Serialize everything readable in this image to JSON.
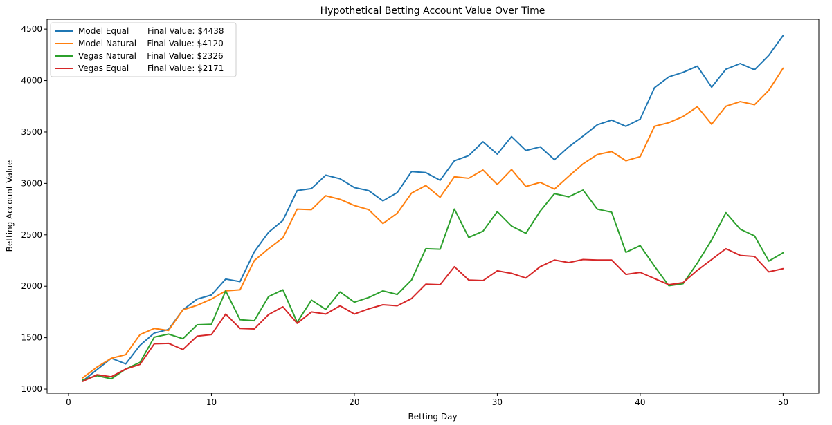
{
  "chart_data": {
    "type": "line",
    "title": "Hypothetical Betting Account Value Over Time",
    "xlabel": "Betting Day",
    "ylabel": "Betting Account Value",
    "xlim": [
      -1.5,
      52.5
    ],
    "ylim": [
      960,
      4595
    ],
    "xticks": [
      0,
      10,
      20,
      30,
      40,
      50
    ],
    "yticks": [
      1000,
      1500,
      2000,
      2500,
      3000,
      3500,
      4000,
      4500
    ],
    "grid": false,
    "legend_position": "top-left",
    "x": [
      1,
      2,
      3,
      4,
      5,
      6,
      7,
      8,
      9,
      10,
      11,
      12,
      13,
      14,
      15,
      16,
      17,
      18,
      19,
      20,
      21,
      22,
      23,
      24,
      25,
      26,
      27,
      28,
      29,
      30,
      31,
      32,
      33,
      34,
      35,
      36,
      37,
      38,
      39,
      40,
      41,
      42,
      43,
      44,
      45,
      46,
      47,
      48,
      49,
      50
    ],
    "series": [
      {
        "name": "Model Equal",
        "legend_label": "Model Equal       Final Value: $4438",
        "color": "#1f77b4",
        "values": [
          1080,
          1190,
          1300,
          1245,
          1425,
          1545,
          1580,
          1770,
          1875,
          1915,
          2070,
          2045,
          2335,
          2525,
          2640,
          2930,
          2950,
          3080,
          3045,
          2960,
          2930,
          2830,
          2910,
          3115,
          3105,
          3030,
          3220,
          3270,
          3405,
          3285,
          3455,
          3320,
          3355,
          3230,
          3355,
          3460,
          3570,
          3615,
          3555,
          3625,
          3930,
          4035,
          4080,
          4140,
          3935,
          4110,
          4165,
          4105,
          4245,
          4438
        ]
      },
      {
        "name": "Model Natural",
        "legend_label": "Model Natural    Final Value: $4120",
        "color": "#ff7f0e",
        "values": [
          1110,
          1215,
          1300,
          1335,
          1530,
          1590,
          1570,
          1770,
          1815,
          1875,
          1955,
          1965,
          2250,
          2365,
          2470,
          2750,
          2745,
          2880,
          2845,
          2785,
          2745,
          2610,
          2710,
          2905,
          2980,
          2865,
          3065,
          3050,
          3130,
          2990,
          3135,
          2970,
          3010,
          2945,
          3070,
          3190,
          3280,
          3310,
          3220,
          3260,
          3555,
          3590,
          3650,
          3745,
          3575,
          3750,
          3795,
          3765,
          3905,
          4120
        ]
      },
      {
        "name": "Vegas Natural",
        "legend_label": "Vegas Natural    Final Value: $2326",
        "color": "#2ca02c",
        "values": [
          1090,
          1130,
          1100,
          1195,
          1260,
          1505,
          1535,
          1490,
          1625,
          1630,
          1955,
          1675,
          1665,
          1900,
          1965,
          1650,
          1865,
          1775,
          1945,
          1845,
          1890,
          1955,
          1920,
          2060,
          2365,
          2360,
          2750,
          2475,
          2535,
          2725,
          2585,
          2515,
          2730,
          2900,
          2870,
          2935,
          2750,
          2720,
          2330,
          2395,
          2195,
          2005,
          2025,
          2225,
          2450,
          2715,
          2555,
          2490,
          2245,
          2326
        ]
      },
      {
        "name": "Vegas Equal",
        "legend_label": "Vegas Equal       Final Value: $2171",
        "color": "#d62728",
        "values": [
          1075,
          1140,
          1120,
          1195,
          1240,
          1440,
          1445,
          1385,
          1515,
          1530,
          1730,
          1590,
          1585,
          1725,
          1800,
          1640,
          1750,
          1730,
          1810,
          1730,
          1780,
          1820,
          1810,
          1880,
          2020,
          2015,
          2190,
          2060,
          2055,
          2150,
          2125,
          2080,
          2190,
          2255,
          2230,
          2260,
          2255,
          2255,
          2115,
          2135,
          2075,
          2015,
          2035,
          2155,
          2260,
          2365,
          2300,
          2290,
          2140,
          2171
        ]
      }
    ]
  }
}
